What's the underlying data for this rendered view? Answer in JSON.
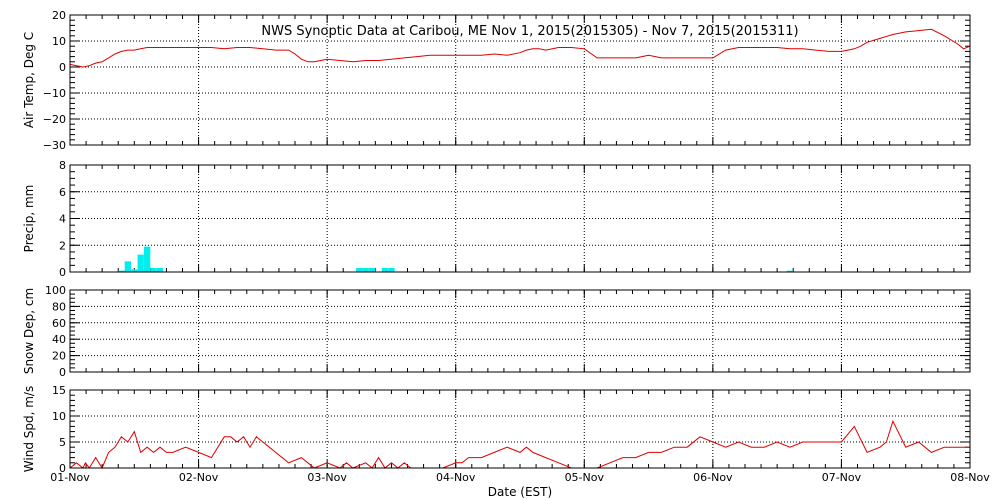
{
  "title": "NWS Synoptic Data at Caribou, ME   Nov  1, 2015(2015305) - Nov  7, 2015(2015311)",
  "xlabel": "Date (EST)",
  "colors": {
    "temperature": "#dd0000",
    "precip": "#00eeee",
    "wind": "#dd0000",
    "axes": "#000000"
  },
  "chart_data": [
    {
      "type": "line",
      "ylabel": "Air Temp, Deg C",
      "ylim": [
        -30,
        20
      ],
      "yticks": [
        "20",
        "10",
        "0",
        "−10",
        "−20",
        "−30"
      ],
      "xlim": [
        0,
        7
      ],
      "x_ticks": [
        "01-Nov",
        "02-Nov",
        "03-Nov",
        "04-Nov",
        "05-Nov",
        "06-Nov",
        "07-Nov",
        "08-Nov"
      ],
      "grid": true,
      "series": [
        {
          "x": [
            0,
            0.05,
            0.1,
            0.15,
            0.2,
            0.25,
            0.3,
            0.35,
            0.4,
            0.45,
            0.5,
            0.55,
            0.6,
            0.7,
            0.8,
            0.9,
            1.0,
            1.1,
            1.2,
            1.3,
            1.4,
            1.5,
            1.6,
            1.7,
            1.75,
            1.8,
            1.85,
            1.9,
            1.95,
            2.0,
            2.1,
            2.2,
            2.3,
            2.4,
            2.5,
            2.6,
            2.7,
            2.8,
            2.9,
            3.0,
            3.1,
            3.2,
            3.3,
            3.4,
            3.5,
            3.55,
            3.6,
            3.65,
            3.7,
            3.8,
            3.9,
            4.0,
            4.1,
            4.2,
            4.3,
            4.4,
            4.5,
            4.6,
            4.7,
            4.8,
            4.9,
            5.0,
            5.1,
            5.2,
            5.3,
            5.4,
            5.5,
            5.6,
            5.7,
            5.8,
            5.9,
            6.0,
            6.05,
            6.1,
            6.15,
            6.2,
            6.3,
            6.4,
            6.5,
            6.6,
            6.7,
            6.8,
            6.9,
            6.95,
            7.0
          ],
          "values": [
            1,
            0.5,
            0,
            0.5,
            1.5,
            2,
            3.5,
            5,
            6,
            6.5,
            6.5,
            7,
            7.5,
            7.5,
            7.5,
            7.5,
            7.5,
            7.5,
            7,
            7.5,
            7.5,
            7,
            6.5,
            6.5,
            5,
            3,
            2,
            2,
            2.5,
            3,
            2.5,
            2,
            2.5,
            2.5,
            3,
            3.5,
            4,
            4.5,
            4.5,
            4.5,
            4.5,
            4.5,
            5,
            4.5,
            5.5,
            6.5,
            7,
            7,
            6.5,
            7.5,
            7.5,
            7,
            3.5,
            3.5,
            3.5,
            3.5,
            4.5,
            3.5,
            3.5,
            3.5,
            3.5,
            3.5,
            6.5,
            7.5,
            7.5,
            7.5,
            7.5,
            7,
            7,
            6.5,
            6,
            6,
            6.5,
            7,
            8,
            9.5,
            11,
            12.5,
            13.5,
            14,
            14.5,
            12,
            9,
            7,
            8
          ]
        }
      ]
    },
    {
      "type": "bar",
      "ylabel": "Precip, mm",
      "ylim": [
        0,
        8
      ],
      "yticks": [
        "8",
        "6",
        "4",
        "2",
        "0"
      ],
      "xlim": [
        0,
        7
      ],
      "grid": true,
      "x": [
        0.4,
        0.45,
        0.5,
        0.55,
        0.6,
        0.65,
        0.7,
        2.25,
        2.3,
        2.35,
        2.45,
        2.5,
        5.6
      ],
      "values": [
        0.1,
        0.8,
        0.2,
        1.3,
        1.9,
        0.3,
        0.3,
        0.3,
        0.3,
        0.3,
        0.3,
        0.3,
        0.1
      ]
    },
    {
      "type": "line",
      "ylabel": "Snow Dep, cm",
      "ylim": [
        0,
        100
      ],
      "yticks": [
        "100",
        "80",
        "60",
        "40",
        "20",
        "0"
      ],
      "xlim": [
        0,
        7
      ],
      "grid": true,
      "series": []
    },
    {
      "type": "line",
      "ylabel": "Wind Spd, m/s",
      "ylim": [
        0,
        15
      ],
      "yticks": [
        "15",
        "10",
        "5",
        "0"
      ],
      "xlim": [
        0,
        7
      ],
      "grid": true,
      "series": [
        {
          "x": [
            0,
            0.05,
            0.1,
            0.12,
            0.15,
            0.2,
            0.25,
            0.3,
            0.35,
            0.4,
            0.45,
            0.5,
            0.55,
            0.6,
            0.65,
            0.7,
            0.75,
            0.8,
            0.9,
            1.0,
            1.1,
            1.2,
            1.25,
            1.3,
            1.35,
            1.4,
            1.45,
            1.5,
            1.55,
            1.6,
            1.7,
            1.8,
            1.9,
            2.0,
            2.1,
            2.15,
            2.2,
            2.3,
            2.35,
            2.4,
            2.45,
            2.5,
            2.55,
            2.6,
            2.65,
            2.7,
            2.8,
            2.9,
            3.0,
            3.05,
            3.1,
            3.2,
            3.3,
            3.4,
            3.5,
            3.55,
            3.6,
            3.7,
            3.8,
            3.9,
            4.0,
            4.1,
            4.2,
            4.3,
            4.4,
            4.5,
            4.6,
            4.7,
            4.8,
            4.9,
            5.0,
            5.1,
            5.2,
            5.3,
            5.4,
            5.5,
            5.6,
            5.7,
            5.8,
            5.9,
            6.0,
            6.1,
            6.2,
            6.3,
            6.35,
            6.4,
            6.5,
            6.6,
            6.7,
            6.8,
            6.9,
            7.0
          ],
          "values": [
            0,
            1,
            0,
            1,
            0,
            2,
            0,
            3,
            4,
            6,
            5,
            7,
            3,
            4,
            3,
            4,
            3,
            3,
            4,
            3,
            2,
            6,
            6,
            5,
            6,
            4,
            6,
            5,
            4,
            3,
            1,
            2,
            0,
            1,
            0,
            1,
            0,
            1,
            0,
            2,
            0,
            1,
            0,
            1,
            0,
            0,
            0,
            0,
            1,
            1,
            2,
            2,
            3,
            4,
            3,
            4,
            3,
            2,
            1,
            0,
            0,
            0,
            1,
            2,
            2,
            3,
            3,
            4,
            4,
            6,
            5,
            4,
            5,
            4,
            4,
            5,
            4,
            5,
            5,
            5,
            5,
            8,
            3,
            4,
            5,
            9,
            4,
            5,
            3,
            4,
            4,
            4
          ]
        }
      ]
    }
  ]
}
